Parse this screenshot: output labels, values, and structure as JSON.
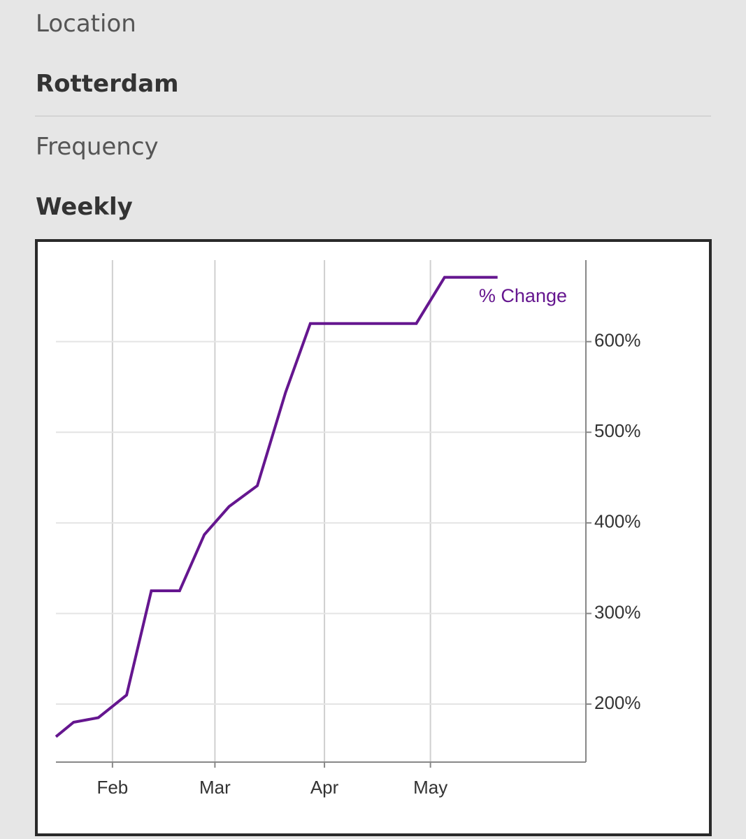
{
  "fields": [
    {
      "label": "Location",
      "value": "Rotterdam"
    },
    {
      "label": "Frequency",
      "value": "Weekly"
    }
  ],
  "chart_data": {
    "type": "line",
    "x": [
      15,
      20,
      27,
      35,
      42,
      50,
      57,
      64,
      72,
      80,
      87,
      117,
      125,
      140
    ],
    "series": [
      {
        "name": "% Change",
        "color": "#65168f",
        "values": [
          164,
          180,
          185,
          210,
          325,
          325,
          387,
          418,
          441,
          544,
          620,
          620,
          671,
          671
        ]
      }
    ],
    "xlim": [
      15,
      165
    ],
    "xticks": [
      {
        "value": 31,
        "label": "Feb"
      },
      {
        "value": 60,
        "label": "Mar"
      },
      {
        "value": 91,
        "label": "Apr"
      },
      {
        "value": 121,
        "label": "May"
      }
    ],
    "ylim": [
      136,
      690
    ],
    "yticks": [
      {
        "value": 200,
        "label": "200%"
      },
      {
        "value": 300,
        "label": "300%"
      },
      {
        "value": 400,
        "label": "400%"
      },
      {
        "value": 500,
        "label": "500%"
      },
      {
        "value": 600,
        "label": "600%"
      }
    ],
    "grid": true
  }
}
